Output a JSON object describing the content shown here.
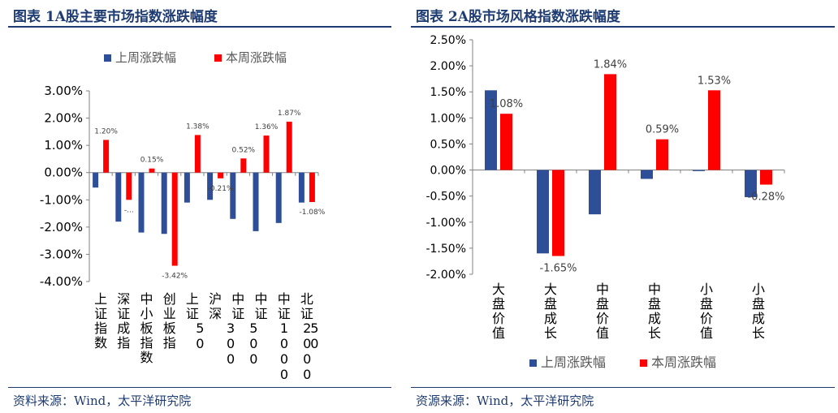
{
  "panels": [
    {
      "title": "图表 1A股主要市场指数涨跌幅度",
      "source": "资料来源：Wind，太平洋研究院"
    },
    {
      "title": "图表 2A股市场风格指数涨跌幅度",
      "source": "资源来源：Wind，太平洋研究院"
    }
  ],
  "colors": {
    "prev_week": "#2e4f98",
    "this_week": "#ff0000",
    "title": "#1f3c72"
  },
  "chart_data": [
    {
      "type": "bar",
      "title": "",
      "categories": [
        "上证指数",
        "深证成指",
        "中小板指数",
        "创业板指",
        "上证50",
        "沪深300",
        "中证500",
        "中证1000",
        "中证2000",
        "北证50"
      ],
      "series": [
        {
          "name": "上周涨跌幅",
          "values": [
            -0.55,
            -1.8,
            -2.2,
            -2.25,
            -1.1,
            -1.0,
            -1.7,
            -2.15,
            -1.85,
            -1.1
          ],
          "data_labels": [
            "",
            "",
            "",
            "",
            "",
            "",
            "",
            "",
            "",
            ""
          ]
        },
        {
          "name": "本周涨跌幅",
          "values": [
            1.2,
            -1.0,
            0.15,
            -3.42,
            1.38,
            -0.21,
            0.52,
            1.36,
            1.87,
            -1.08
          ],
          "data_labels": [
            "1.20%",
            "-...",
            "0.15%",
            "-3.42%",
            "1.38%",
            "-0.21%",
            "0.52%",
            "1.36%",
            "1.87%",
            "-1.08%"
          ]
        }
      ],
      "ylim": [
        -4.0,
        3.0
      ],
      "yticks": [
        "3.00%",
        "2.00%",
        "1.00%",
        "0.00%",
        "-1.00%",
        "-2.00%",
        "-3.00%",
        "-4.00%"
      ],
      "legend_position": "top",
      "grid": false
    },
    {
      "type": "bar",
      "title": "",
      "categories": [
        "大盘价值",
        "大盘成长",
        "中盘价值",
        "中盘成长",
        "小盘价值",
        "小盘成长"
      ],
      "series": [
        {
          "name": "上周涨跌幅",
          "values": [
            1.53,
            -1.6,
            -0.85,
            -0.17,
            -0.02,
            -0.52
          ],
          "data_labels": [
            "",
            "",
            "",
            "",
            "",
            ""
          ]
        },
        {
          "name": "本周涨跌幅",
          "values": [
            1.08,
            -1.65,
            1.84,
            0.59,
            1.53,
            -0.28
          ],
          "data_labels": [
            "1.08%",
            "-1.65%",
            "1.84%",
            "0.59%",
            "1.53%",
            "-0.28%"
          ]
        }
      ],
      "ylim": [
        -2.0,
        2.5
      ],
      "yticks": [
        "2.50%",
        "2.00%",
        "1.50%",
        "1.00%",
        "0.50%",
        "0.00%",
        "-0.50%",
        "-1.00%",
        "-1.50%",
        "-2.00%"
      ],
      "legend_position": "bottom",
      "grid": false
    }
  ]
}
